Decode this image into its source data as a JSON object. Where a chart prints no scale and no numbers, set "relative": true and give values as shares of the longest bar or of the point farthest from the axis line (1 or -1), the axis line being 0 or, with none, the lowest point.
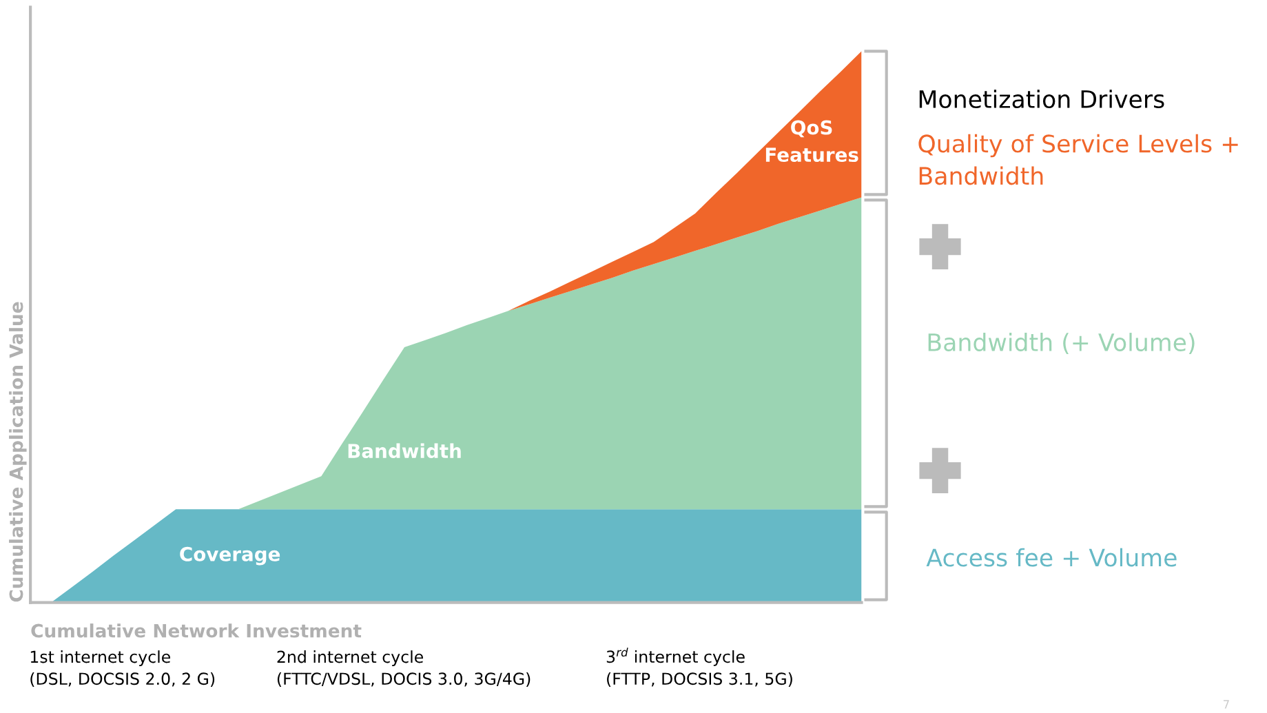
{
  "chart_data": {
    "type": "area",
    "stacked": true,
    "relative": true,
    "xlabel": "Cumulative Network Investment",
    "ylabel": "Cumulative Application Value",
    "categories": [
      null,
      null,
      null,
      null,
      null,
      null,
      null,
      null,
      null,
      null,
      null,
      null,
      null,
      null,
      null,
      null,
      null,
      null,
      null,
      null,
      null,
      null,
      null,
      null,
      null,
      null,
      null,
      null,
      null,
      null,
      null,
      null,
      null,
      null,
      null,
      null,
      null,
      null,
      null,
      null,
      null
    ],
    "series": [
      {
        "name": "Coverage",
        "color": "#66b9c6",
        "values": [
          0,
          0,
          0.028,
          0.056,
          0.085,
          0.113,
          0.141,
          0.169,
          0.169,
          0.169,
          0.169,
          0.169,
          0.169,
          0.169,
          0.169,
          0.169,
          0.169,
          0.169,
          0.169,
          0.169,
          0.169,
          0.169,
          0.169,
          0.169,
          0.169,
          0.169,
          0.169,
          0.169,
          0.169,
          0.169,
          0.169,
          0.169,
          0.169,
          0.169,
          0.169,
          0.169,
          0.169,
          0.169,
          0.169,
          0.169,
          0.169
        ]
      },
      {
        "name": "Bandwidth",
        "color": "#9bd4b3",
        "values": [
          0,
          0,
          0,
          0,
          0,
          0,
          0,
          0,
          0,
          0,
          0,
          0.015,
          0.03,
          0.045,
          0.06,
          0.119,
          0.177,
          0.236,
          0.294,
          0.307,
          0.32,
          0.334,
          0.347,
          0.36,
          0.372,
          0.384,
          0.396,
          0.408,
          0.42,
          0.433,
          0.445,
          0.457,
          0.469,
          0.481,
          0.493,
          0.505,
          0.518,
          0.53,
          0.542,
          0.554,
          0.566
        ]
      },
      {
        "name": "QoS\nFeatures",
        "color": "#f0662a",
        "values": [
          0,
          0,
          0,
          0,
          0,
          0,
          0,
          0,
          0,
          0,
          0,
          0,
          0,
          0,
          0,
          0,
          0,
          0,
          0,
          0,
          0,
          0,
          0,
          0,
          0.006,
          0.011,
          0.017,
          0.023,
          0.029,
          0.034,
          0.04,
          0.054,
          0.068,
          0.093,
          0.117,
          0.142,
          0.166,
          0.191,
          0.216,
          0.24,
          0.265
        ]
      }
    ],
    "annotations": [
      "Monetization Drivers",
      "Quality of Service Levels +\nBandwidth",
      "Bandwidth (+ Volume)",
      "Access fee + Volume",
      "1st internet cycle\n(DSL, DOCSIS 2.0, 2 G)",
      "2nd internet cycle\n(FTTC/VDSL, DOCIS 3.0, 3G/4G)",
      "3$^{rd}$ internet cycle\n(FTTP, DOCSIS 3.1, 5G)",
      "7"
    ],
    "legend": false
  }
}
